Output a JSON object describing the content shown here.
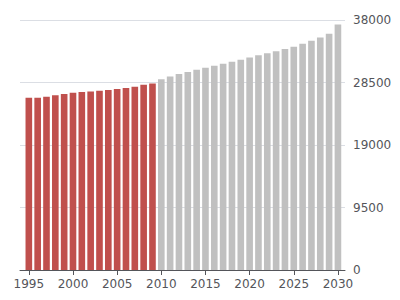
{
  "chart_data": {
    "type": "bar",
    "x": [
      1995,
      1996,
      1997,
      1998,
      1999,
      2000,
      2001,
      2002,
      2003,
      2004,
      2005,
      2006,
      2007,
      2008,
      2009,
      2010,
      2011,
      2012,
      2013,
      2014,
      2015,
      2016,
      2017,
      2018,
      2019,
      2020,
      2021,
      2022,
      2023,
      2024,
      2025,
      2026,
      2027,
      2028,
      2029,
      2030
    ],
    "series": [
      {
        "color": "#c0504d",
        "values": [
          26200,
          26200,
          26350,
          26550,
          26750,
          26950,
          27050,
          27150,
          27250,
          27350,
          27500,
          27650,
          27850,
          28150,
          28350,
          null,
          null,
          null,
          null,
          null,
          null,
          null,
          null,
          null,
          null,
          null,
          null,
          null,
          null,
          null,
          null,
          null,
          null,
          null,
          null,
          null
        ]
      },
      {
        "color": "#c0c0c0",
        "values": [
          null,
          null,
          null,
          null,
          null,
          null,
          null,
          null,
          null,
          null,
          null,
          null,
          null,
          null,
          null,
          29000,
          29400,
          29800,
          30100,
          30450,
          30750,
          31050,
          31350,
          31650,
          31950,
          32300,
          32650,
          32950,
          33250,
          33600,
          33950,
          34400,
          34850,
          35350,
          35900,
          37300
        ]
      }
    ],
    "xlim": [
      1994.0,
      2030.8
    ],
    "xticks": [
      1995,
      2000,
      2005,
      2010,
      2015,
      2020,
      2025,
      2030
    ],
    "ylim": [
      0,
      38000
    ],
    "yticks": [
      0,
      9500,
      19000,
      28500,
      38000
    ],
    "grid": true
  }
}
